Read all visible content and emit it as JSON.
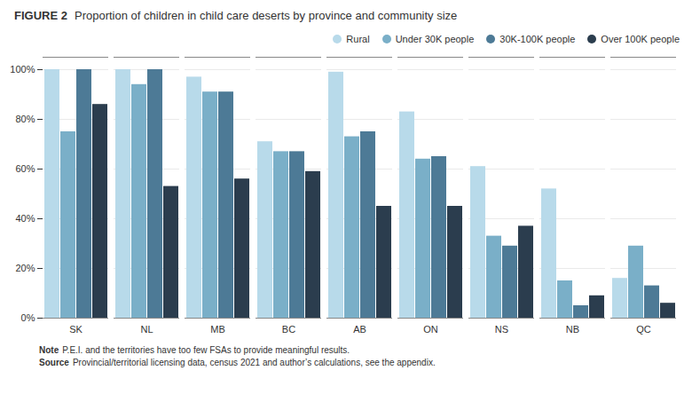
{
  "chart_data": {
    "type": "bar",
    "title": "FIGURE 2",
    "subtitle": "Proportion of children in child care deserts by province and community size",
    "annotations": [
      "Note P.E.I. and the territories have too few FSAs to provide meaningful results.",
      "Source Provincial/territorial licensing data, census 2021 and author’s calculations, see the appendix."
    ],
    "categories": [
      "SK",
      "NL",
      "MB",
      "BC",
      "AB",
      "ON",
      "NS",
      "NB",
      "QC"
    ],
    "series": [
      {
        "name": "Rural",
        "color": "#b8daea",
        "values": [
          100,
          100,
          97,
          71,
          99,
          83,
          61,
          52,
          16
        ]
      },
      {
        "name": "Under 30K people",
        "color": "#7aafc8",
        "values": [
          75,
          94,
          91,
          67,
          73,
          64,
          33,
          15,
          29
        ]
      },
      {
        "name": "30K-100K people",
        "color": "#4d7a96",
        "values": [
          100,
          100,
          91,
          67,
          75,
          65,
          29,
          5,
          13
        ]
      },
      {
        "name": "Over 100K people",
        "color": "#2b3d4e",
        "values": [
          86,
          53,
          56,
          59,
          45,
          45,
          37,
          9,
          6
        ]
      }
    ],
    "ylim": [
      0,
      105
    ],
    "yticks": [
      {
        "value": 0,
        "label": "0%"
      },
      {
        "value": 20,
        "label": "20%"
      },
      {
        "value": 40,
        "label": "40%"
      },
      {
        "value": 60,
        "label": "60%"
      },
      {
        "value": 80,
        "label": "80%"
      },
      {
        "value": 100,
        "label": "100%"
      }
    ],
    "grid": true,
    "legend": "upper right"
  }
}
